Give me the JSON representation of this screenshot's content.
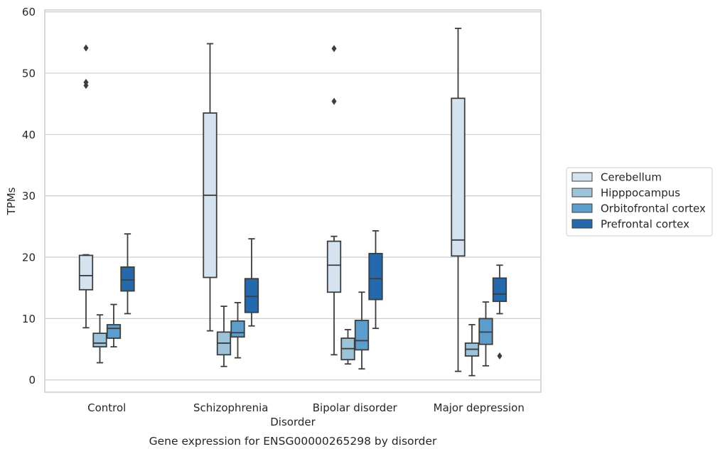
{
  "chart_data": {
    "type": "box",
    "xlabel": "Disorder",
    "ylabel": "TPMs",
    "caption": "Gene expression for ENSG00000265298 by disorder",
    "ylim": [
      -2,
      60.3
    ],
    "yticks": [
      0,
      10,
      20,
      30,
      40,
      50,
      60
    ],
    "grid": "horizontal",
    "legend_position": "right",
    "categories": [
      "Control",
      "Schizophrenia",
      "Bipolar disorder",
      "Major depression"
    ],
    "series": [
      {
        "name": "Cerebellum",
        "color": "#d5e3f1",
        "boxes": [
          {
            "whislo": 8.5,
            "q1": 14.7,
            "med": 17.0,
            "q3": 20.3,
            "whishi": 20.4,
            "fliers": [
              48.0,
              48.5,
              54.1
            ]
          },
          {
            "whislo": 8.0,
            "q1": 16.7,
            "med": 30.1,
            "q3": 43.5,
            "whishi": 54.8,
            "fliers": []
          },
          {
            "whislo": 4.1,
            "q1": 14.3,
            "med": 18.7,
            "q3": 22.6,
            "whishi": 23.4,
            "fliers": [
              45.4,
              54.0
            ]
          },
          {
            "whislo": 1.4,
            "q1": 20.2,
            "med": 22.8,
            "q3": 45.9,
            "whishi": 57.3,
            "fliers": []
          }
        ]
      },
      {
        "name": "Hipppocampus",
        "color": "#9cc3da",
        "boxes": [
          {
            "whislo": 2.8,
            "q1": 5.4,
            "med": 6.0,
            "q3": 7.6,
            "whishi": 10.6,
            "fliers": []
          },
          {
            "whislo": 2.2,
            "q1": 4.1,
            "med": 6.0,
            "q3": 7.8,
            "whishi": 12.0,
            "fliers": []
          },
          {
            "whislo": 2.6,
            "q1": 3.3,
            "med": 5.1,
            "q3": 6.8,
            "whishi": 8.2,
            "fliers": []
          },
          {
            "whislo": 0.7,
            "q1": 3.9,
            "med": 5.0,
            "q3": 6.0,
            "whishi": 9.0,
            "fliers": []
          }
        ]
      },
      {
        "name": "Orbitofrontal cortex",
        "color": "#5d9dcb",
        "boxes": [
          {
            "whislo": 5.4,
            "q1": 6.8,
            "med": 8.4,
            "q3": 9.0,
            "whishi": 12.3,
            "fliers": []
          },
          {
            "whislo": 3.6,
            "q1": 7.0,
            "med": 7.7,
            "q3": 9.6,
            "whishi": 12.6,
            "fliers": []
          },
          {
            "whislo": 1.8,
            "q1": 4.9,
            "med": 6.4,
            "q3": 9.7,
            "whishi": 14.3,
            "fliers": []
          },
          {
            "whislo": 2.3,
            "q1": 5.8,
            "med": 7.8,
            "q3": 10.0,
            "whishi": 12.7,
            "fliers": []
          }
        ]
      },
      {
        "name": "Prefrontal cortex",
        "color": "#2469ab",
        "boxes": [
          {
            "whislo": 10.8,
            "q1": 14.5,
            "med": 16.3,
            "q3": 18.4,
            "whishi": 23.8,
            "fliers": []
          },
          {
            "whislo": 8.8,
            "q1": 11.0,
            "med": 13.6,
            "q3": 16.5,
            "whishi": 23.0,
            "fliers": []
          },
          {
            "whislo": 8.4,
            "q1": 13.1,
            "med": 16.5,
            "q3": 20.6,
            "whishi": 24.3,
            "fliers": []
          },
          {
            "whislo": 10.8,
            "q1": 12.8,
            "med": 14.0,
            "q3": 16.6,
            "whishi": 18.7,
            "fliers": [
              3.9
            ]
          }
        ]
      }
    ]
  }
}
